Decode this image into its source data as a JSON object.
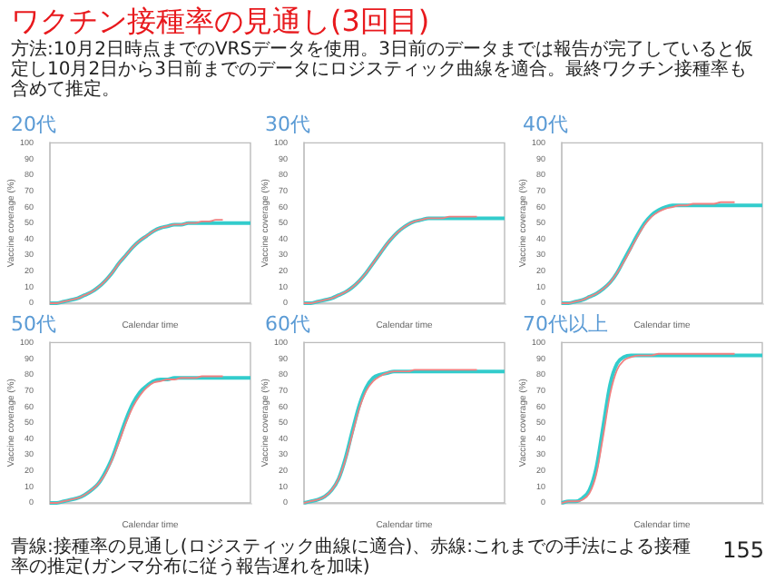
{
  "chart_data": [
    {
      "type": "other",
      "title": "ワクチン接種率の見通し(3回目)",
      "subtitle": "方法:10月2日時点までのVRSデータを使用。3日前のデータまでは報告が完了していると仮定し10月2日から3日前までのデータにロジスティック曲線を適合。最終ワクチン接種率も含めて推定。",
      "annotations": [
        "青線:接種率の見通し(ロジスティック曲線に適合)、赤線:これまでの手法による接種率の推定(ガンマ分布に従う報告遅れを加味)",
        "155"
      ]
    },
    {
      "type": "line",
      "title": "20代",
      "xlabel": "Calendar time",
      "ylabel": "Vaccine coverage (%)",
      "categories": [
        null,
        null,
        null,
        null,
        null,
        null,
        null,
        null,
        null,
        null,
        null,
        null,
        null,
        null,
        null,
        null,
        null,
        null,
        null,
        null,
        null,
        null,
        null,
        null,
        null,
        null,
        null,
        null,
        null,
        null
      ],
      "ylim": [
        0,
        100
      ],
      "yticks": [
        0,
        10,
        20,
        30,
        40,
        50,
        60,
        70,
        80,
        90,
        100
      ],
      "tick_labels": "y",
      "grid": false,
      "legend": false,
      "series": [
        {
          "color": "#f08080",
          "values": [
            0,
            0,
            1,
            2,
            3,
            5,
            7,
            10,
            14,
            19,
            25,
            30,
            35,
            39,
            42,
            45,
            47,
            48,
            49,
            49,
            50,
            50,
            51,
            51,
            52,
            52,
            null,
            null,
            null,
            null
          ]
        },
        {
          "color": "#33cccc",
          "values": [
            0,
            0,
            1,
            2,
            3,
            5,
            7,
            10,
            14,
            19,
            25,
            30,
            35,
            39,
            42,
            45,
            47,
            48,
            49,
            49,
            50,
            50,
            50,
            50,
            50,
            50,
            50,
            50,
            50,
            50
          ]
        }
      ]
    },
    {
      "type": "line",
      "title": "30代",
      "xlabel": "Calendar time",
      "ylabel": "Vaccine coverage (%)",
      "categories": [
        null,
        null,
        null,
        null,
        null,
        null,
        null,
        null,
        null,
        null,
        null,
        null,
        null,
        null,
        null,
        null,
        null,
        null,
        null,
        null,
        null,
        null,
        null,
        null,
        null,
        null,
        null,
        null,
        null,
        null
      ],
      "ylim": [
        0,
        100
      ],
      "yticks": [
        0,
        10,
        20,
        30,
        40,
        50,
        60,
        70,
        80,
        90,
        100
      ],
      "tick_labels": "y",
      "grid": false,
      "legend": false,
      "series": [
        {
          "color": "#f08080",
          "values": [
            0,
            0,
            1,
            2,
            3,
            5,
            7,
            10,
            14,
            19,
            25,
            31,
            37,
            42,
            46,
            49,
            51,
            52,
            53,
            53,
            53,
            54,
            54,
            54,
            54,
            54,
            null,
            null,
            null,
            null
          ]
        },
        {
          "color": "#33cccc",
          "values": [
            0,
            0,
            1,
            2,
            3,
            5,
            7,
            10,
            14,
            19,
            25,
            31,
            37,
            42,
            46,
            49,
            51,
            52,
            53,
            53,
            53,
            53,
            53,
            53,
            53,
            53,
            53,
            53,
            53,
            53
          ]
        }
      ]
    },
    {
      "type": "line",
      "title": "40代",
      "xlabel": "Calendar time",
      "ylabel": "Vaccine coverage (%)",
      "categories": [
        null,
        null,
        null,
        null,
        null,
        null,
        null,
        null,
        null,
        null,
        null,
        null,
        null,
        null,
        null,
        null,
        null,
        null,
        null,
        null,
        null,
        null,
        null,
        null,
        null,
        null,
        null,
        null,
        null,
        null
      ],
      "ylim": [
        0,
        100
      ],
      "yticks": [
        0,
        10,
        20,
        30,
        40,
        50,
        60,
        70,
        80,
        90,
        100
      ],
      "tick_labels": "y",
      "grid": false,
      "legend": false,
      "series": [
        {
          "color": "#f08080",
          "values": [
            0,
            0,
            1,
            2,
            4,
            6,
            9,
            13,
            19,
            26,
            34,
            42,
            49,
            54,
            57,
            59,
            60,
            61,
            61,
            62,
            62,
            62,
            62,
            63,
            63,
            63,
            null,
            null,
            null,
            null
          ]
        },
        {
          "color": "#33cccc",
          "values": [
            0,
            0,
            1,
            2,
            4,
            6,
            9,
            13,
            19,
            27,
            35,
            43,
            50,
            55,
            58,
            60,
            61,
            61,
            61,
            61,
            61,
            61,
            61,
            61,
            61,
            61,
            61,
            61,
            61,
            61
          ]
        }
      ]
    },
    {
      "type": "line",
      "title": "50代",
      "xlabel": "Calendar time",
      "ylabel": "Vaccine coverage (%)",
      "categories": [
        null,
        null,
        null,
        null,
        null,
        null,
        null,
        null,
        null,
        null,
        null,
        null,
        null,
        null,
        null,
        null,
        null,
        null,
        null,
        null,
        null,
        null,
        null,
        null,
        null,
        null,
        null,
        null,
        null,
        null
      ],
      "ylim": [
        0,
        100
      ],
      "yticks": [
        0,
        10,
        20,
        30,
        40,
        50,
        60,
        70,
        80,
        90,
        100
      ],
      "tick_labels": "y",
      "grid": false,
      "legend": false,
      "series": [
        {
          "color": "#f08080",
          "values": [
            0,
            0,
            1,
            2,
            3,
            5,
            8,
            12,
            18,
            27,
            38,
            50,
            60,
            67,
            72,
            75,
            76,
            77,
            77,
            78,
            78,
            78,
            79,
            79,
            79,
            79,
            null,
            null,
            null,
            null
          ]
        },
        {
          "color": "#33cccc",
          "values": [
            0,
            0,
            1,
            2,
            3,
            5,
            8,
            12,
            19,
            28,
            40,
            52,
            62,
            69,
            73,
            76,
            77,
            77,
            78,
            78,
            78,
            78,
            78,
            78,
            78,
            78,
            78,
            78,
            78,
            78
          ]
        }
      ]
    },
    {
      "type": "line",
      "title": "60代",
      "xlabel": "Calendar time",
      "ylabel": "Vaccine coverage (%)",
      "categories": [
        null,
        null,
        null,
        null,
        null,
        null,
        null,
        null,
        null,
        null,
        null,
        null,
        null,
        null,
        null,
        null,
        null,
        null,
        null,
        null,
        null,
        null,
        null,
        null,
        null,
        null,
        null,
        null,
        null,
        null
      ],
      "ylim": [
        0,
        100
      ],
      "yticks": [
        0,
        10,
        20,
        30,
        40,
        50,
        60,
        70,
        80,
        90,
        100
      ],
      "tick_labels": "y",
      "grid": false,
      "legend": false,
      "series": [
        {
          "color": "#f08080",
          "values": [
            0,
            1,
            2,
            4,
            8,
            15,
            27,
            43,
            59,
            70,
            76,
            79,
            81,
            82,
            82,
            82,
            83,
            83,
            83,
            83,
            83,
            83,
            83,
            83,
            83,
            83,
            null,
            null,
            null,
            null
          ]
        },
        {
          "color": "#33cccc",
          "values": [
            0,
            1,
            2,
            4,
            8,
            15,
            28,
            45,
            61,
            72,
            78,
            80,
            81,
            82,
            82,
            82,
            82,
            82,
            82,
            82,
            82,
            82,
            82,
            82,
            82,
            82,
            82,
            82,
            82,
            82
          ]
        }
      ]
    },
    {
      "type": "line",
      "title": "70代以上",
      "xlabel": "Calendar time",
      "ylabel": "Vaccine coverage (%)",
      "categories": [
        null,
        null,
        null,
        null,
        null,
        null,
        null,
        null,
        null,
        null,
        null,
        null,
        null,
        null,
        null,
        null,
        null,
        null,
        null,
        null,
        null,
        null,
        null,
        null,
        null,
        null,
        null,
        null,
        null,
        null
      ],
      "ylim": [
        0,
        100
      ],
      "yticks": [
        0,
        10,
        20,
        30,
        40,
        50,
        60,
        70,
        80,
        90,
        100
      ],
      "tick_labels": "y",
      "grid": false,
      "legend": false,
      "series": [
        {
          "color": "#f08080",
          "values": [
            0,
            1,
            1,
            2,
            6,
            18,
            42,
            68,
            83,
            89,
            91,
            92,
            92,
            92,
            93,
            93,
            93,
            93,
            93,
            93,
            93,
            93,
            93,
            93,
            93,
            93,
            null,
            null,
            null,
            null
          ]
        },
        {
          "color": "#33cccc",
          "values": [
            0,
            1,
            1,
            3,
            8,
            22,
            48,
            74,
            87,
            91,
            92,
            92,
            92,
            92,
            92,
            92,
            92,
            92,
            92,
            92,
            92,
            92,
            92,
            92,
            92,
            92,
            92,
            92,
            92,
            92
          ]
        }
      ]
    }
  ]
}
